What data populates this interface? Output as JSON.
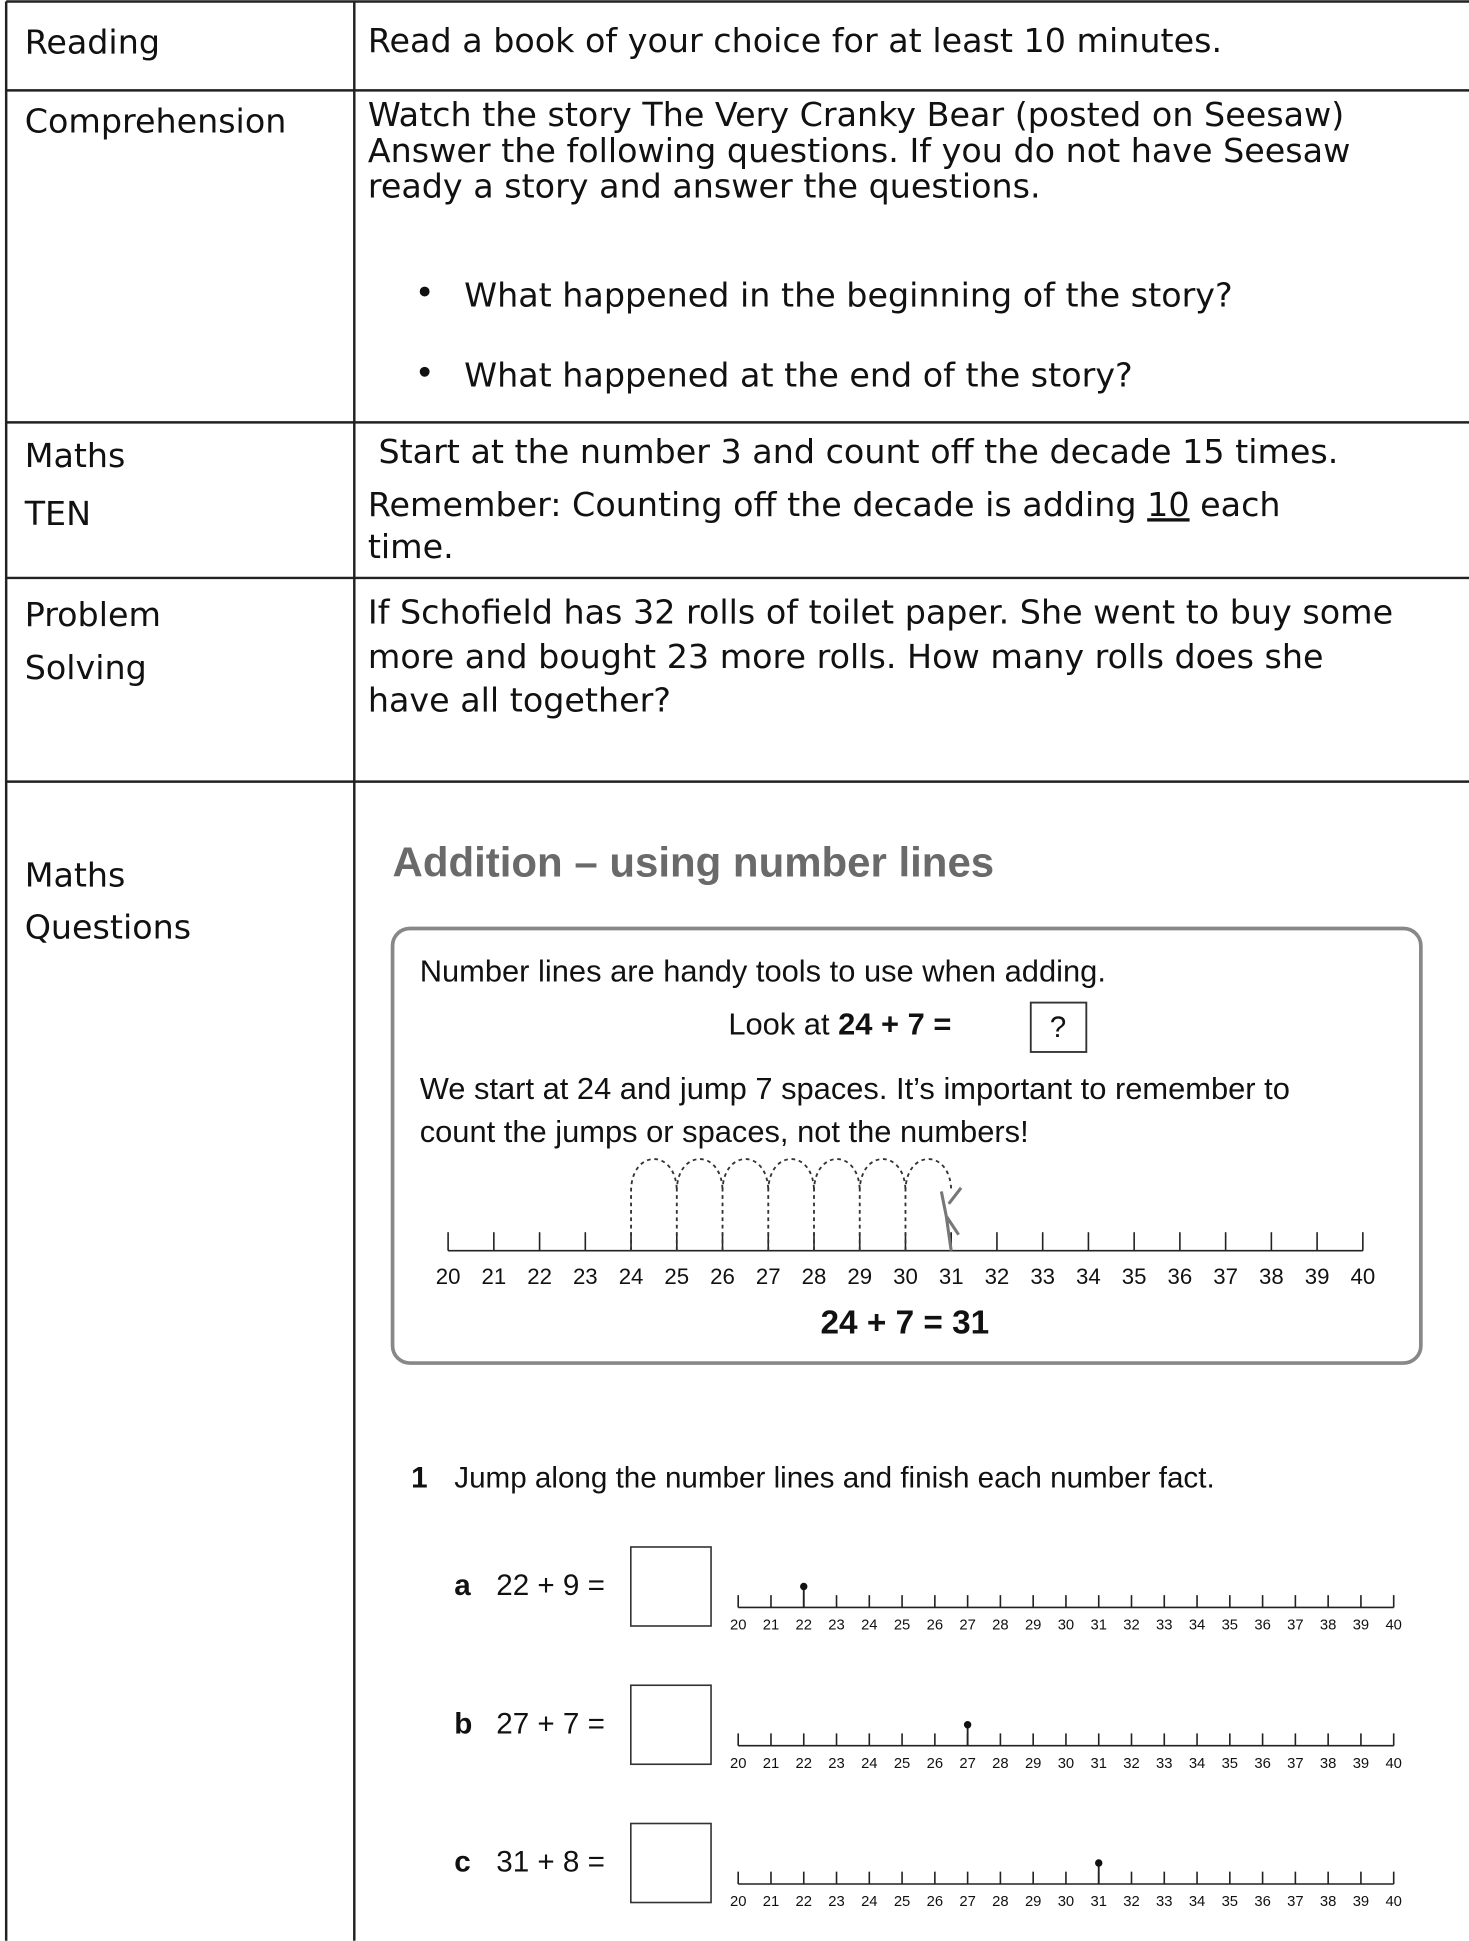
{
  "rows": [
    {
      "label": [
        "Reading"
      ],
      "content": [
        "Read a book of your choice for at least 10 minutes."
      ]
    },
    {
      "label": [
        "Comprehension"
      ],
      "content": [
        "Watch the story The Very Cranky Bear (posted on Seesaw)",
        "Answer the following questions. If you do not have Seesaw",
        "ready a story and answer the questions."
      ],
      "bullets": [
        "What happened in the beginning of the story?",
        "What happened at the end of the story?"
      ]
    },
    {
      "label": [
        "Maths",
        "TEN"
      ],
      "content": [
        " Start at the number 3 and count off the decade 15 times.",
        "Remember: Counting off the decade is adding ",
        "time."
      ],
      "underlined": "10",
      "after": " each"
    },
    {
      "label": [
        "Problem",
        "Solving"
      ],
      "content": [
        "If Schofield has 32 rolls of toilet paper. She went to buy some",
        "more and bought 23 more rolls. How many rolls does she",
        "have all together?"
      ]
    },
    {
      "label": [
        "Maths",
        "Questions"
      ]
    }
  ],
  "worksheet": {
    "title": "Addition – using number lines",
    "intro": "Number lines are handy tools to use when adding.",
    "look_at": "Look at ",
    "example_sum": "24 + 7 =",
    "example_blank": "?",
    "explanation": [
      "We start at 24 and jump 7 spaces. It’s important to remember to",
      "count the jumps or spaces, not the numbers!"
    ],
    "number_line": [
      20,
      21,
      22,
      23,
      24,
      25,
      26,
      27,
      28,
      29,
      30,
      31,
      32,
      33,
      34,
      35,
      36,
      37,
      38,
      39,
      40
    ],
    "jump_from": 24,
    "jump_to": 31,
    "example_result": "24 + 7 = 31",
    "question_number": "1",
    "question_text": "Jump along the number lines and finish each number fact.",
    "items": [
      {
        "letter": "a",
        "sum": "22 + 9 =",
        "start": 22
      },
      {
        "letter": "b",
        "sum": "27 + 7 =",
        "start": 27
      },
      {
        "letter": "c",
        "sum": "31 + 8 =",
        "start": 31
      }
    ]
  }
}
